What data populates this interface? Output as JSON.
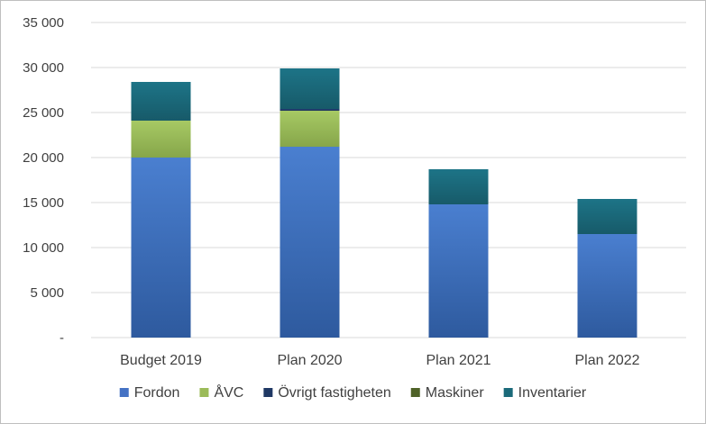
{
  "chart_data": {
    "type": "bar",
    "stacked": true,
    "categories": [
      "Budget 2019",
      "Plan 2020",
      "Plan 2021",
      "Plan 2022"
    ],
    "series": [
      {
        "name": "Fordon",
        "color": "#4472c4",
        "values": [
          20000,
          21200,
          14800,
          11500
        ]
      },
      {
        "name": "ÅVC",
        "color": "#9bbb59",
        "values": [
          4100,
          4000,
          0,
          0
        ]
      },
      {
        "name": "Övrigt fastigheten",
        "color": "#1f3864",
        "values": [
          0,
          200,
          0,
          0
        ]
      },
      {
        "name": "Maskiner",
        "color": "#4f6228",
        "values": [
          0,
          0,
          0,
          0
        ]
      },
      {
        "name": "Inventarier",
        "color": "#1b6a7a",
        "values": [
          4300,
          4500,
          3900,
          3900
        ]
      }
    ],
    "ylim": [
      0,
      35000
    ],
    "yticks": [
      0,
      5000,
      10000,
      15000,
      20000,
      25000,
      30000,
      35000
    ],
    "ytick_labels": [
      "-",
      "5 000",
      "10 000",
      "15 000",
      "20 000",
      "25 000",
      "30 000",
      "35 000"
    ],
    "grid": true,
    "legend_position": "bottom",
    "title": "",
    "xlabel": "",
    "ylabel": ""
  }
}
